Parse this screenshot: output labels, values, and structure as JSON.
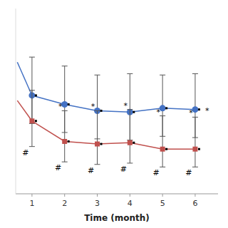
{
  "chart_data": {
    "type": "line",
    "xlabel": "Time (month)",
    "x": [
      1,
      2,
      3,
      4,
      5,
      6
    ],
    "xlim": [
      0.5,
      6.7
    ],
    "xticks": [
      1,
      2,
      3,
      4,
      5,
      6
    ],
    "ylim": [
      -1.5,
      13
    ],
    "tick_labels": "x",
    "grid": false,
    "error_color": "#555555",
    "series": [
      {
        "color": "#4472C4",
        "marker": "circle",
        "values": [
          6.2,
          5.5,
          5.0,
          4.9,
          5.2,
          5.1
        ],
        "error_lower": [
          2.2,
          2.2,
          2.2,
          2.2,
          2.2,
          2.2
        ],
        "error_upper": [
          3.0,
          3.0,
          2.8,
          3.0,
          2.6,
          2.8
        ],
        "start_x": 0.55,
        "start_y": 8.8
      },
      {
        "color": "#C0504D",
        "marker": "square",
        "values": [
          4.2,
          2.6,
          2.4,
          2.5,
          2.0,
          2.0
        ],
        "error_lower": [
          2.0,
          1.6,
          1.6,
          1.6,
          1.4,
          1.4
        ],
        "error_upper": [
          2.4,
          2.4,
          2.6,
          2.6,
          2.6,
          2.5
        ],
        "start_x": 0.55,
        "start_y": 5.8
      }
    ],
    "annotations": [
      {
        "text": "*",
        "series": 1,
        "x": 2,
        "position": "above"
      },
      {
        "text": "*",
        "series": 1,
        "x": 3,
        "position": "above"
      },
      {
        "text": "*",
        "series": 1,
        "x": 4,
        "position": "above"
      },
      {
        "text": "*",
        "series": 1,
        "x": 5,
        "position": "above"
      },
      {
        "text": "*",
        "series": 1,
        "x": 6,
        "position": "above"
      },
      {
        "text": "*",
        "series": 0,
        "x": 6,
        "position": "right"
      },
      {
        "text": "#",
        "series": 1,
        "x": 1,
        "position": "below"
      },
      {
        "text": "#",
        "series": 1,
        "x": 2,
        "position": "below"
      },
      {
        "text": "#",
        "series": 1,
        "x": 3,
        "position": "below"
      },
      {
        "text": "#",
        "series": 1,
        "x": 4,
        "position": "below"
      },
      {
        "text": "#",
        "series": 1,
        "x": 5,
        "position": "below"
      },
      {
        "text": "#",
        "series": 1,
        "x": 6,
        "position": "below"
      }
    ]
  }
}
